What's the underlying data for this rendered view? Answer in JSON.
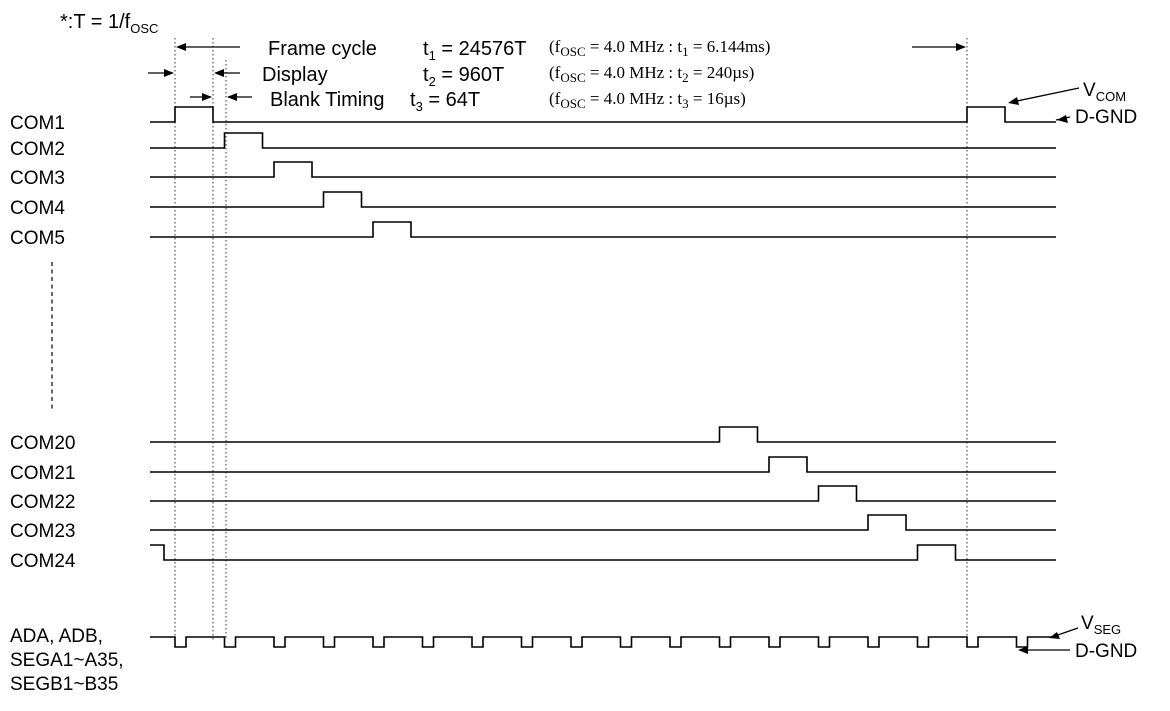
{
  "period_note": {
    "prefix": "*:T = 1/f",
    "sub": "OSC"
  },
  "frame": {
    "label": "Frame cycle",
    "t_sym": "t",
    "t_sub": "1",
    "t_val": " = 24576T",
    "cond": "(f",
    "cond_sub": "OSC",
    "cond_rest": " = 4.0 MHz : t",
    "cond_tsub": "1",
    "cond_end": " = 6.144ms)"
  },
  "display": {
    "label": "Display",
    "t_sym": "t",
    "t_sub": "2",
    "t_val": " = 960T",
    "cond": "(f",
    "cond_sub": "OSC",
    "cond_rest": " = 4.0 MHz : t",
    "cond_tsub": "2",
    "cond_end": " = 240µs)"
  },
  "blank": {
    "label": "Blank Timing",
    "t_sym": "t",
    "t_sub": "3",
    "t_val": " = 64T",
    "cond": "(f",
    "cond_sub": "OSC",
    "cond_rest": " = 4.0 MHz : t",
    "cond_tsub": "3",
    "cond_end": " = 16µs)"
  },
  "vcom": {
    "main": "V",
    "sub": "COM"
  },
  "vseg": {
    "main": "V",
    "sub": "SEG"
  },
  "dgnd_top": "D-GND",
  "dgnd_bottom": "D-GND",
  "com_signals": [
    {
      "name": "COM1",
      "pulse_slots": [
        0,
        16
      ]
    },
    {
      "name": "COM2",
      "pulse_slots": [
        1
      ]
    },
    {
      "name": "COM3",
      "pulse_slots": [
        2
      ]
    },
    {
      "name": "COM4",
      "pulse_slots": [
        3
      ]
    },
    {
      "name": "COM5",
      "pulse_slots": [
        4
      ]
    },
    {
      "name": "COM20",
      "pulse_slots": [
        11
      ]
    },
    {
      "name": "COM21",
      "pulse_slots": [
        12
      ]
    },
    {
      "name": "COM22",
      "pulse_slots": [
        13
      ]
    },
    {
      "name": "COM23",
      "pulse_slots": [
        14
      ]
    },
    {
      "name": "COM24",
      "pulse_slots": [
        15
      ],
      "starts_high": true
    }
  ],
  "seg_signal": {
    "label_lines": [
      "ADA, ADB,",
      "SEGA1~A35,",
      "SEGB1~B35"
    ]
  }
}
